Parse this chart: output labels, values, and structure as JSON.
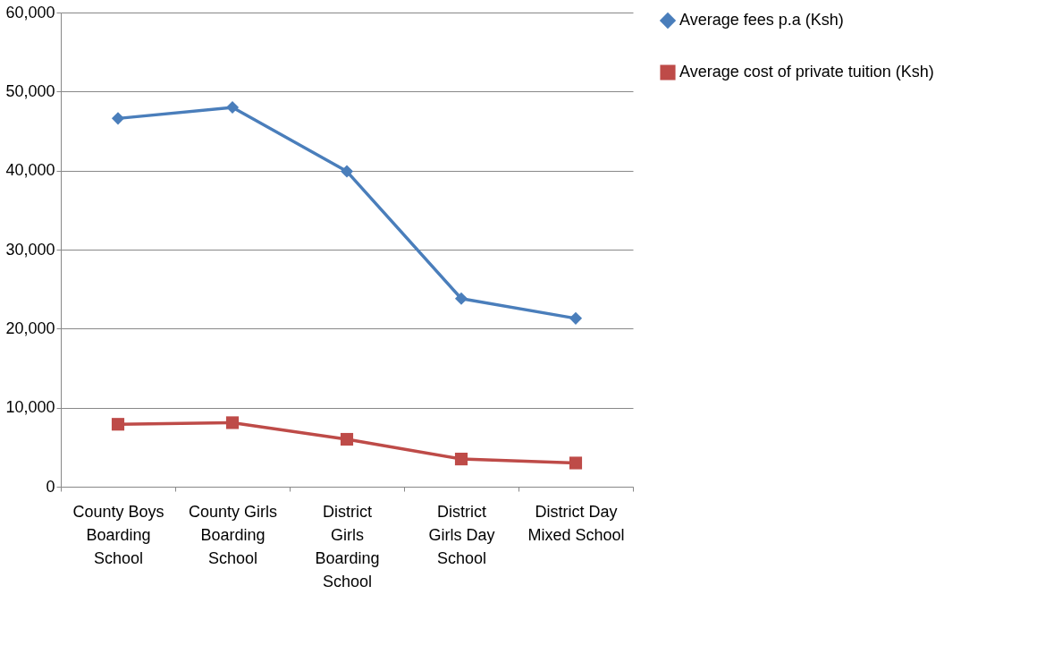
{
  "chart_data": {
    "type": "line",
    "categories": [
      "County Boys Boarding School",
      "County Girls Boarding School",
      "District Girls Boarding School",
      "District Girls Day School",
      "District Day Mixed School"
    ],
    "series": [
      {
        "name": "Average fees p.a (Ksh)",
        "color": "#4a7ebb",
        "marker": "diamond",
        "values": [
          46600,
          48000,
          39900,
          23800,
          21300
        ]
      },
      {
        "name": "Average cost of private tuition (Ksh)",
        "color": "#be4b48",
        "marker": "square",
        "values": [
          7900,
          8100,
          6000,
          3500,
          3000
        ]
      }
    ],
    "ylim": [
      0,
      60000
    ],
    "yticks": [
      0,
      {
        "value": 10000,
        "label": "10,000"
      },
      {
        "value": 20000,
        "label": "20,000"
      },
      {
        "value": 30000,
        "label": "30,000"
      },
      {
        "value": 40000,
        "label": "40,000"
      },
      {
        "value": 50000,
        "label": "50,000"
      },
      {
        "value": 60000,
        "label": "60,000"
      }
    ],
    "grid": "y",
    "legend": "right"
  }
}
